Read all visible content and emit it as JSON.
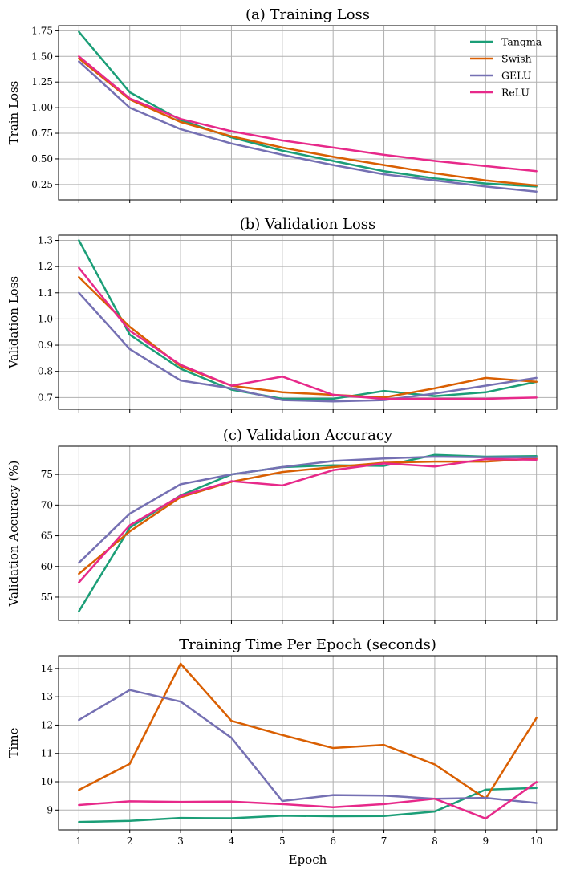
{
  "chart_data": [
    {
      "type": "line",
      "title": "(a) Training Loss",
      "xlabel": "",
      "ylabel": "Train Loss",
      "x": [
        1,
        2,
        3,
        4,
        5,
        6,
        7,
        8,
        9,
        10
      ],
      "xlim": [
        0.6,
        10.4
      ],
      "ylim": [
        0.1,
        1.8
      ],
      "yticks": [
        0.25,
        0.5,
        0.75,
        1.0,
        1.25,
        1.5,
        1.75
      ],
      "ytick_labels": [
        "0.25",
        "0.50",
        "0.75",
        "1.00",
        "1.25",
        "1.50",
        "1.75"
      ],
      "show_xtick_labels": false,
      "legend": "upper right",
      "grid": true,
      "series": [
        {
          "name": "Tangma",
          "color": "#1b9e77",
          "values": [
            1.74,
            1.15,
            0.88,
            0.71,
            0.58,
            0.48,
            0.38,
            0.31,
            0.26,
            0.23
          ]
        },
        {
          "name": "Swish",
          "color": "#d95f02",
          "values": [
            1.48,
            1.08,
            0.86,
            0.72,
            0.61,
            0.52,
            0.44,
            0.36,
            0.29,
            0.24
          ]
        },
        {
          "name": "GELU",
          "color": "#7570b3",
          "values": [
            1.45,
            1.0,
            0.79,
            0.65,
            0.54,
            0.44,
            0.35,
            0.29,
            0.23,
            0.18
          ]
        },
        {
          "name": "ReLU",
          "color": "#e7298a",
          "values": [
            1.5,
            1.09,
            0.89,
            0.77,
            0.68,
            0.61,
            0.54,
            0.48,
            0.43,
            0.38
          ]
        }
      ]
    },
    {
      "type": "line",
      "title": "(b) Validation Loss",
      "xlabel": "",
      "ylabel": "Validation Loss",
      "x": [
        1,
        2,
        3,
        4,
        5,
        6,
        7,
        8,
        9,
        10
      ],
      "xlim": [
        0.6,
        10.4
      ],
      "ylim": [
        0.655,
        1.32
      ],
      "yticks": [
        0.7,
        0.8,
        0.9,
        1.0,
        1.1,
        1.2,
        1.3
      ],
      "ytick_labels": [
        "0.7",
        "0.8",
        "0.9",
        "1.0",
        "1.1",
        "1.2",
        "1.3"
      ],
      "show_xtick_labels": false,
      "grid": true,
      "series": [
        {
          "name": "Tangma",
          "color": "#1b9e77",
          "values": [
            1.3,
            0.94,
            0.81,
            0.73,
            0.695,
            0.695,
            0.725,
            0.705,
            0.72,
            0.76
          ]
        },
        {
          "name": "Swish",
          "color": "#d95f02",
          "values": [
            1.16,
            0.97,
            0.82,
            0.745,
            0.72,
            0.71,
            0.7,
            0.735,
            0.775,
            0.76
          ]
        },
        {
          "name": "GELU",
          "color": "#7570b3",
          "values": [
            1.1,
            0.885,
            0.765,
            0.735,
            0.69,
            0.685,
            0.69,
            0.715,
            0.745,
            0.775
          ]
        },
        {
          "name": "ReLU",
          "color": "#e7298a",
          "values": [
            1.195,
            0.955,
            0.825,
            0.745,
            0.78,
            0.71,
            0.695,
            0.695,
            0.695,
            0.7
          ]
        }
      ]
    },
    {
      "type": "line",
      "title": "(c) Validation Accuracy",
      "xlabel": "",
      "ylabel": "Validation Accuracy (%)",
      "x": [
        1,
        2,
        3,
        4,
        5,
        6,
        7,
        8,
        9,
        10
      ],
      "xlim": [
        0.6,
        10.4
      ],
      "ylim": [
        51.2,
        79.6
      ],
      "yticks": [
        55,
        60,
        65,
        70,
        75
      ],
      "ytick_labels": [
        "55",
        "60",
        "65",
        "70",
        "75"
      ],
      "show_xtick_labels": false,
      "grid": true,
      "series": [
        {
          "name": "Tangma",
          "color": "#1b9e77",
          "values": [
            52.7,
            66.3,
            71.6,
            75.0,
            76.2,
            76.5,
            76.4,
            78.2,
            77.9,
            78.0
          ]
        },
        {
          "name": "Swish",
          "color": "#d95f02",
          "values": [
            58.8,
            65.7,
            71.3,
            73.8,
            75.4,
            76.2,
            76.9,
            77.1,
            77.1,
            77.6
          ]
        },
        {
          "name": "GELU",
          "color": "#7570b3",
          "values": [
            60.6,
            68.6,
            73.4,
            75.0,
            76.2,
            77.2,
            77.6,
            77.9,
            77.8,
            77.8
          ]
        },
        {
          "name": "ReLU",
          "color": "#e7298a",
          "values": [
            57.4,
            66.7,
            71.5,
            73.9,
            73.2,
            75.7,
            76.8,
            76.3,
            77.5,
            77.4
          ]
        }
      ]
    },
    {
      "type": "line",
      "title": "Training Time Per Epoch (seconds)",
      "xlabel": "Epoch",
      "ylabel": "Time",
      "x": [
        1,
        2,
        3,
        4,
        5,
        6,
        7,
        8,
        9,
        10
      ],
      "xlim": [
        0.6,
        10.4
      ],
      "ylim": [
        8.3,
        14.45
      ],
      "yticks": [
        9,
        10,
        11,
        12,
        13,
        14
      ],
      "ytick_labels": [
        "9",
        "10",
        "11",
        "12",
        "13",
        "14"
      ],
      "xtick_labels": [
        "1",
        "2",
        "3",
        "4",
        "5",
        "6",
        "7",
        "8",
        "9",
        "10"
      ],
      "show_xtick_labels": true,
      "grid": true,
      "series": [
        {
          "name": "Tangma",
          "color": "#1b9e77",
          "values": [
            8.58,
            8.62,
            8.72,
            8.71,
            8.8,
            8.78,
            8.79,
            8.95,
            9.72,
            9.78
          ]
        },
        {
          "name": "Swish",
          "color": "#d95f02",
          "values": [
            9.71,
            10.63,
            14.17,
            12.15,
            11.65,
            11.19,
            11.3,
            10.61,
            9.4,
            12.25
          ]
        },
        {
          "name": "GELU",
          "color": "#7570b3",
          "values": [
            12.18,
            13.24,
            12.83,
            11.55,
            9.32,
            9.53,
            9.51,
            9.4,
            9.43,
            9.25
          ]
        },
        {
          "name": "ReLU",
          "color": "#e7298a",
          "values": [
            9.18,
            9.31,
            9.29,
            9.3,
            9.21,
            9.1,
            9.21,
            9.4,
            8.7,
            9.99
          ]
        }
      ]
    }
  ]
}
